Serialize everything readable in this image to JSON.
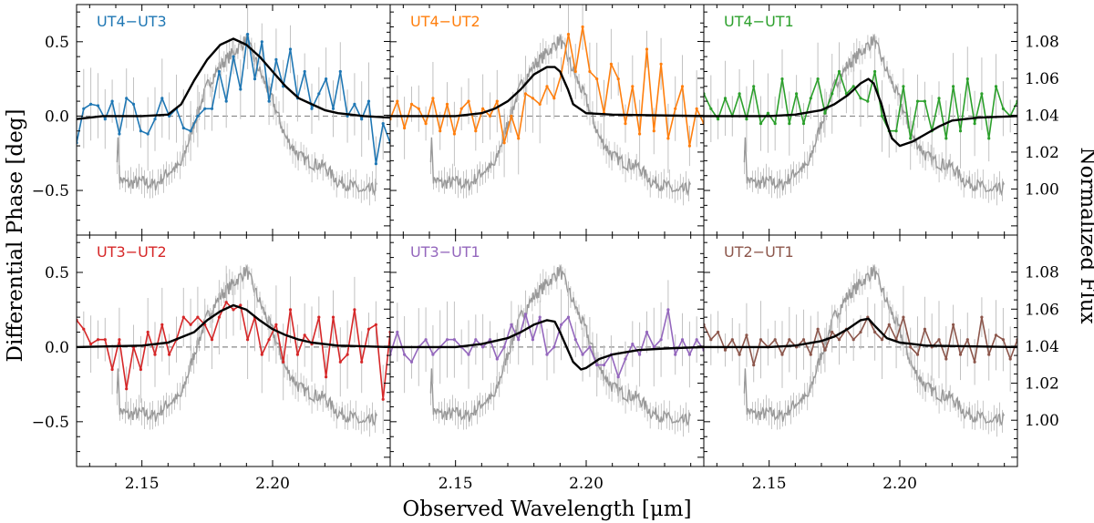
{
  "chart_data": {
    "type": "line",
    "figure": {
      "xlabel": "Observed Wavelength [μm]",
      "ylabel_left": "Differential Phase [deg]",
      "ylabel_right": "Normalized Flux",
      "xlim": [
        2.125,
        2.245
      ],
      "xticks": [
        2.15,
        2.2
      ],
      "xtick_labels": [
        "2.15",
        "2.20"
      ],
      "ylim_phase": [
        -0.8,
        0.75
      ],
      "yticks_phase": [
        -0.5,
        0.0,
        0.5
      ],
      "ytick_labels_phase": [
        "−0.5",
        "0.0",
        "0.5"
      ],
      "ylim_flux": [
        0.975,
        1.1
      ],
      "yticks_flux": [
        1.0,
        1.02,
        1.04,
        1.06,
        1.08
      ],
      "ytick_labels_flux": [
        "1.00",
        "1.02",
        "1.04",
        "1.06",
        "1.08"
      ],
      "grid": false,
      "layout": "2 rows x 3 columns, shared axes"
    },
    "flux_spectrum": {
      "name": "Normalized Flux",
      "color": "#999999",
      "points": [
        [
          2.1405,
          1.018
        ],
        [
          2.141,
          1.028
        ],
        [
          2.1415,
          1.005
        ],
        [
          2.145,
          1.003
        ],
        [
          2.15,
          1.004
        ],
        [
          2.155,
          1.002
        ],
        [
          2.16,
          1.009
        ],
        [
          2.165,
          1.013
        ],
        [
          2.17,
          1.036
        ],
        [
          2.175,
          1.056
        ],
        [
          2.18,
          1.067
        ],
        [
          2.185,
          1.074
        ],
        [
          2.19,
          1.081
        ],
        [
          2.195,
          1.064
        ],
        [
          2.2,
          1.048
        ],
        [
          2.205,
          1.028
        ],
        [
          2.21,
          1.018
        ],
        [
          2.215,
          1.014
        ],
        [
          2.22,
          1.012
        ],
        [
          2.225,
          1.004
        ],
        [
          2.23,
          1.002
        ],
        [
          2.235,
          0.998
        ],
        [
          2.24,
          1.001
        ]
      ]
    },
    "panels": [
      {
        "label": "UT4−UT3",
        "color": "#1f77b4",
        "model": [
          [
            2.125,
            -0.02
          ],
          [
            2.135,
            0.0
          ],
          [
            2.15,
            0.0
          ],
          [
            2.16,
            0.01
          ],
          [
            2.165,
            0.08
          ],
          [
            2.17,
            0.24
          ],
          [
            2.175,
            0.38
          ],
          [
            2.18,
            0.48
          ],
          [
            2.185,
            0.52
          ],
          [
            2.19,
            0.48
          ],
          [
            2.195,
            0.4
          ],
          [
            2.2,
            0.3
          ],
          [
            2.205,
            0.2
          ],
          [
            2.21,
            0.12
          ],
          [
            2.215,
            0.08
          ],
          [
            2.22,
            0.04
          ],
          [
            2.225,
            0.02
          ],
          [
            2.235,
            0.0
          ],
          [
            2.245,
            -0.01
          ]
        ],
        "data": [
          -0.18,
          0.05,
          0.08,
          0.07,
          -0.02,
          0.1,
          -0.12,
          0.12,
          0.08,
          -0.1,
          -0.12,
          -0.02,
          0.12,
          0.0,
          0.05,
          -0.08,
          -0.1,
          0.0,
          0.05,
          0.05,
          0.3,
          0.1,
          0.4,
          0.18,
          0.55,
          0.25,
          0.5,
          0.1,
          0.38,
          0.2,
          0.45,
          0.12,
          0.3,
          0.05,
          0.15,
          0.25,
          0.05,
          0.3,
          0.0,
          0.08,
          -0.02,
          0.1,
          -0.32,
          -0.05,
          -0.18
        ]
      },
      {
        "label": "UT4−UT2",
        "color": "#ff7f0e",
        "model": [
          [
            2.125,
            0.0
          ],
          [
            2.15,
            0.0
          ],
          [
            2.16,
            0.02
          ],
          [
            2.165,
            0.05
          ],
          [
            2.17,
            0.1
          ],
          [
            2.175,
            0.18
          ],
          [
            2.18,
            0.28
          ],
          [
            2.185,
            0.33
          ],
          [
            2.188,
            0.33
          ],
          [
            2.19,
            0.3
          ],
          [
            2.193,
            0.18
          ],
          [
            2.195,
            0.08
          ],
          [
            2.2,
            0.02
          ],
          [
            2.21,
            0.01
          ],
          [
            2.245,
            0.0
          ]
        ],
        "data": [
          -0.02,
          0.1,
          -0.08,
          0.08,
          0.05,
          -0.05,
          0.12,
          -0.1,
          0.08,
          -0.12,
          0.05,
          0.1,
          -0.1,
          0.05,
          0.0,
          0.1,
          -0.18,
          0.0,
          -0.15,
          0.15,
          0.12,
          0.08,
          0.2,
          0.12,
          0.28,
          0.55,
          0.3,
          0.6,
          0.3,
          0.25,
          0.02,
          0.35,
          0.25,
          -0.05,
          0.2,
          -0.12,
          0.45,
          -0.1,
          0.35,
          -0.15,
          0.05,
          0.2,
          -0.2,
          0.05,
          -0.05
        ]
      },
      {
        "label": "UT4−UT1",
        "color": "#2ca02c",
        "model": [
          [
            2.125,
            0.0
          ],
          [
            2.15,
            0.0
          ],
          [
            2.16,
            0.01
          ],
          [
            2.17,
            0.04
          ],
          [
            2.175,
            0.08
          ],
          [
            2.18,
            0.14
          ],
          [
            2.185,
            0.22
          ],
          [
            2.188,
            0.25
          ],
          [
            2.19,
            0.22
          ],
          [
            2.193,
            0.08
          ],
          [
            2.195,
            -0.05
          ],
          [
            2.197,
            -0.15
          ],
          [
            2.2,
            -0.2
          ],
          [
            2.205,
            -0.17
          ],
          [
            2.21,
            -0.12
          ],
          [
            2.215,
            -0.07
          ],
          [
            2.22,
            -0.03
          ],
          [
            2.23,
            -0.01
          ],
          [
            2.245,
            0.0
          ]
        ],
        "data": [
          0.15,
          0.05,
          -0.02,
          0.12,
          0.0,
          0.15,
          -0.02,
          0.2,
          -0.05,
          0.02,
          -0.05,
          0.25,
          -0.05,
          0.15,
          -0.05,
          0.12,
          0.25,
          0.02,
          0.15,
          0.3,
          0.15,
          0.2,
          0.12,
          0.1,
          0.3,
          0.0,
          -0.1,
          -0.1,
          0.2,
          -0.15,
          0.1,
          0.1,
          -0.1,
          0.12,
          -0.15,
          0.2,
          -0.1,
          0.25,
          -0.05,
          0.15,
          -0.15,
          0.2,
          0.05,
          0.0,
          0.1
        ]
      },
      {
        "label": "UT3−UT2",
        "color": "#d62728",
        "model": [
          [
            2.125,
            0.0
          ],
          [
            2.15,
            0.01
          ],
          [
            2.16,
            0.03
          ],
          [
            2.17,
            0.1
          ],
          [
            2.175,
            0.18
          ],
          [
            2.18,
            0.24
          ],
          [
            2.185,
            0.28
          ],
          [
            2.19,
            0.25
          ],
          [
            2.195,
            0.18
          ],
          [
            2.2,
            0.12
          ],
          [
            2.205,
            0.08
          ],
          [
            2.21,
            0.05
          ],
          [
            2.215,
            0.03
          ],
          [
            2.225,
            0.01
          ],
          [
            2.245,
            0.0
          ]
        ],
        "data": [
          0.18,
          0.12,
          0.02,
          0.05,
          0.05,
          -0.15,
          0.05,
          -0.28,
          0.0,
          -0.15,
          0.1,
          -0.05,
          0.15,
          -0.05,
          0.05,
          0.2,
          0.15,
          0.2,
          0.15,
          0.05,
          0.2,
          0.3,
          0.25,
          0.28,
          0.05,
          0.2,
          -0.05,
          0.05,
          0.15,
          -0.1,
          0.25,
          -0.05,
          0.08,
          0.02,
          0.2,
          -0.2,
          0.2,
          -0.1,
          -0.05,
          0.25,
          -0.1,
          0.12,
          0.15,
          -0.35,
          0.1
        ]
      },
      {
        "label": "UT3−UT1",
        "color": "#9467bd",
        "model": [
          [
            2.125,
            0.0
          ],
          [
            2.15,
            0.0
          ],
          [
            2.16,
            0.02
          ],
          [
            2.17,
            0.06
          ],
          [
            2.175,
            0.1
          ],
          [
            2.18,
            0.15
          ],
          [
            2.185,
            0.18
          ],
          [
            2.188,
            0.17
          ],
          [
            2.19,
            0.1
          ],
          [
            2.193,
            -0.02
          ],
          [
            2.195,
            -0.1
          ],
          [
            2.198,
            -0.15
          ],
          [
            2.2,
            -0.14
          ],
          [
            2.205,
            -0.08
          ],
          [
            2.21,
            -0.05
          ],
          [
            2.22,
            -0.02
          ],
          [
            2.23,
            -0.01
          ],
          [
            2.245,
            0.0
          ]
        ],
        "data": [
          -0.05,
          0.1,
          -0.05,
          -0.1,
          0.0,
          0.05,
          -0.05,
          0.0,
          0.05,
          0.05,
          0.0,
          -0.05,
          0.05,
          0.0,
          0.05,
          -0.08,
          0.0,
          0.15,
          0.05,
          0.22,
          0.05,
          0.2,
          -0.05,
          0.0,
          0.15,
          0.2,
          0.05,
          -0.05,
          0.0,
          -0.12,
          -0.12,
          -0.05,
          -0.2,
          -0.08,
          0.02,
          -0.05,
          0.1,
          0.0,
          0.05,
          0.25,
          -0.05,
          0.05,
          -0.05,
          0.05,
          -0.02
        ]
      },
      {
        "label": "UT2−UT1",
        "color": "#8c564b",
        "model": [
          [
            2.125,
            0.0
          ],
          [
            2.15,
            0.0
          ],
          [
            2.16,
            0.01
          ],
          [
            2.17,
            0.04
          ],
          [
            2.175,
            0.07
          ],
          [
            2.18,
            0.12
          ],
          [
            2.185,
            0.18
          ],
          [
            2.188,
            0.19
          ],
          [
            2.19,
            0.15
          ],
          [
            2.195,
            0.06
          ],
          [
            2.2,
            0.03
          ],
          [
            2.205,
            0.02
          ],
          [
            2.21,
            0.01
          ],
          [
            2.245,
            0.0
          ]
        ],
        "data": [
          0.15,
          0.05,
          0.1,
          -0.02,
          0.05,
          -0.05,
          0.08,
          -0.12,
          0.05,
          0.0,
          0.05,
          -0.05,
          0.05,
          0.0,
          0.05,
          -0.05,
          0.12,
          -0.02,
          0.1,
          0.05,
          0.12,
          0.05,
          0.1,
          0.2,
          0.1,
          0.05,
          0.15,
          0.05,
          0.2,
          0.0,
          -0.05,
          0.12,
          0.0,
          0.05,
          -0.08,
          0.15,
          -0.05,
          0.05,
          -0.1,
          0.2,
          -0.05,
          0.08,
          0.05,
          -0.08,
          0.05
        ]
      }
    ]
  }
}
